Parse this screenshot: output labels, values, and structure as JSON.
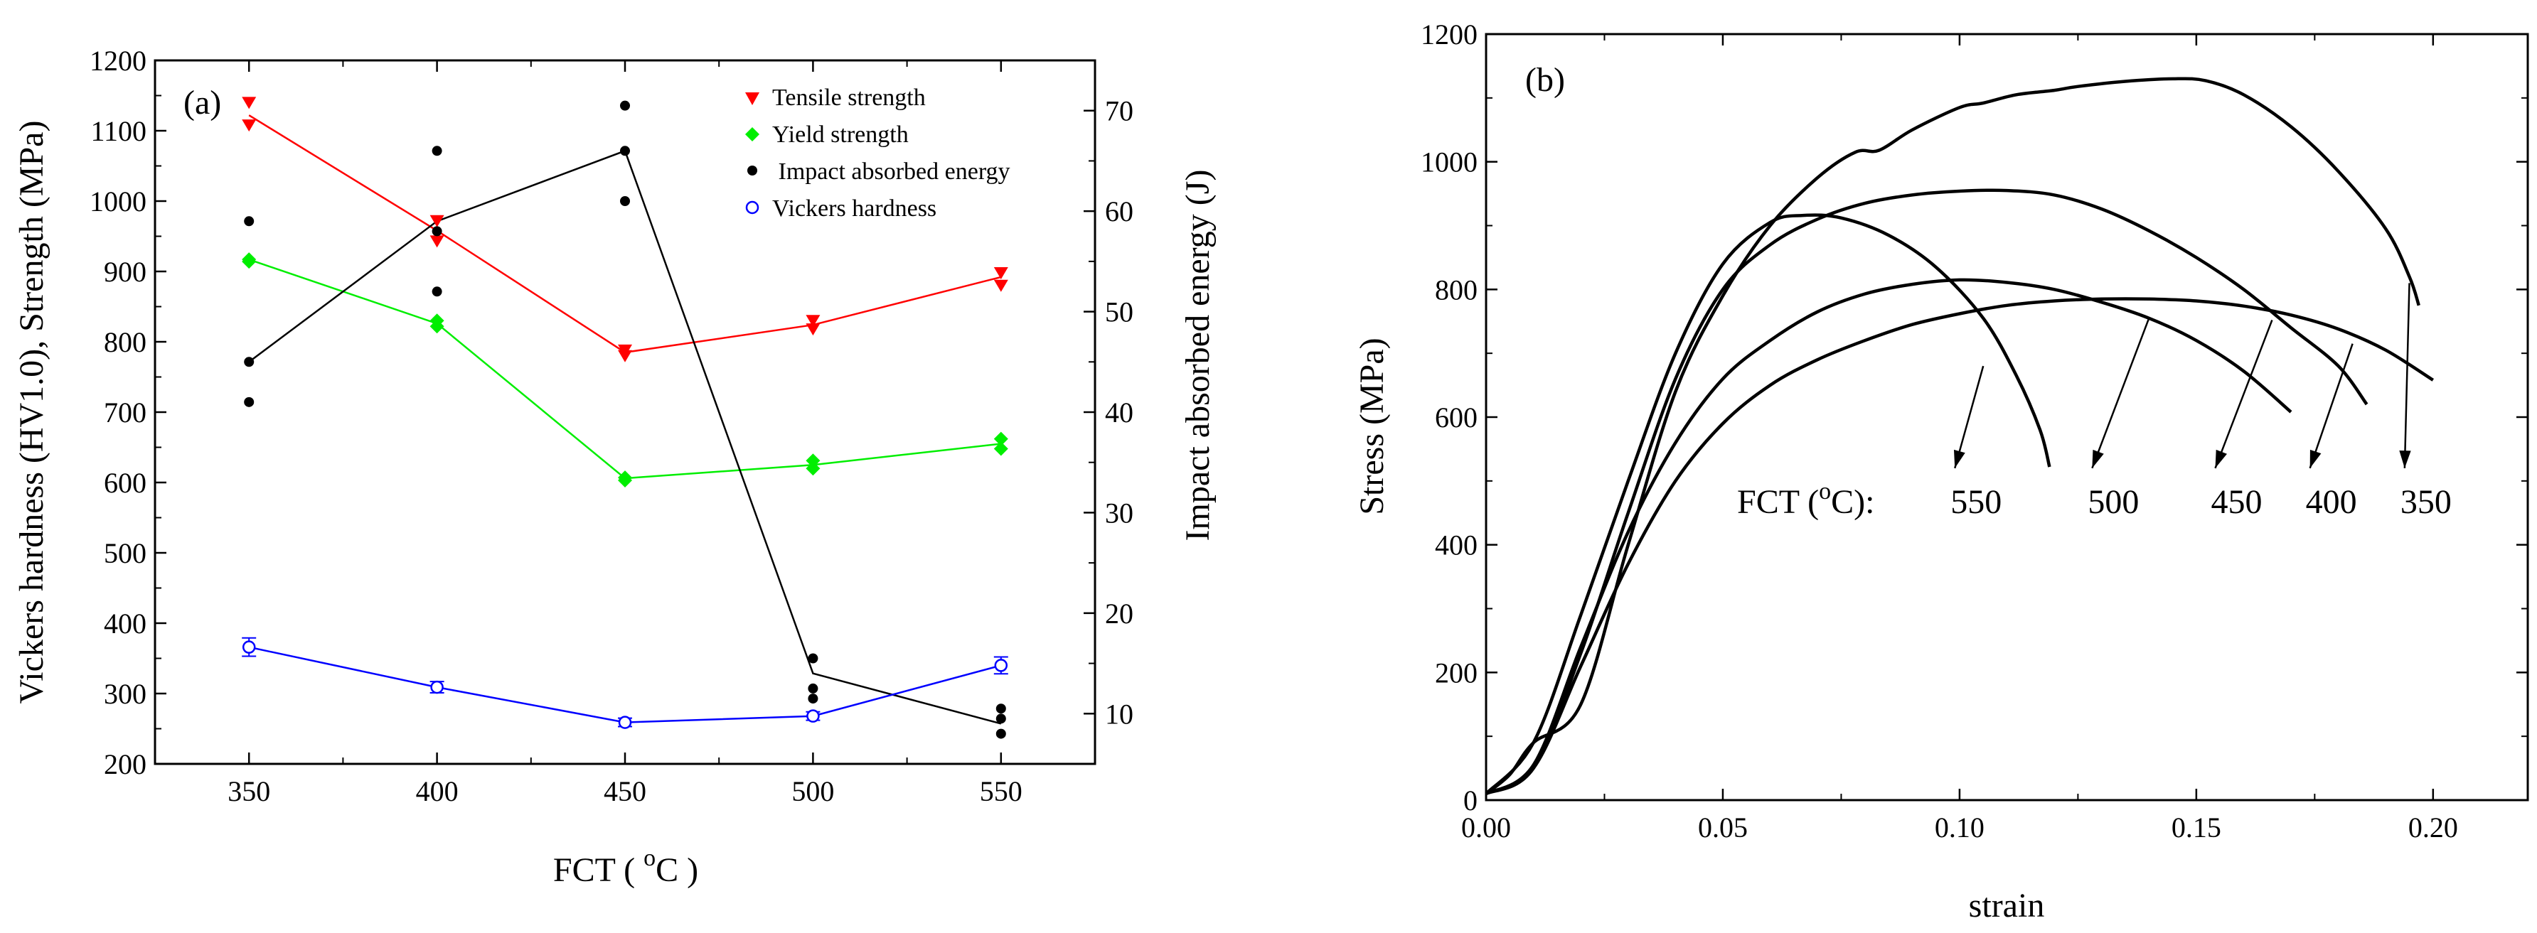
{
  "chart_data": [
    {
      "panel_label": "(a)",
      "type": "scatter",
      "xlabel_main": "FCT ( ",
      "xlabel_sup": "o",
      "xlabel_end": "C )",
      "ylabel_left": "Vickers hardness (HV1.0), Strength (MPa)",
      "ylabel_right": "Impact absorbed energy (J)",
      "xlim": [
        325,
        575
      ],
      "ylim_left": [
        200,
        1200
      ],
      "ylim_right": [
        5,
        75
      ],
      "xticks": [
        350,
        400,
        450,
        500,
        550
      ],
      "yticks_left": [
        200,
        300,
        400,
        500,
        600,
        700,
        800,
        900,
        1000,
        1100,
        1200
      ],
      "yticks_right": [
        10,
        20,
        30,
        40,
        50,
        60,
        70
      ],
      "colors": {
        "tensile": "#ff0000",
        "yield": "#00ee00",
        "impact": "#000000",
        "hardness": "#0000ff"
      },
      "series": [
        {
          "name": "Tensile strength",
          "axis": "left",
          "marker": "triangle-down",
          "points": [
            [
              350,
              1140
            ],
            [
              350,
              1108
            ],
            [
              400,
              972
            ],
            [
              400,
              943
            ],
            [
              450,
              788
            ],
            [
              450,
              780
            ],
            [
              500,
              830
            ],
            [
              500,
              818
            ],
            [
              550,
              898
            ],
            [
              550,
              880
            ]
          ],
          "mean_line": [
            [
              350,
              1122
            ],
            [
              400,
              958
            ],
            [
              450,
              785
            ],
            [
              500,
              824
            ],
            [
              550,
              892
            ]
          ]
        },
        {
          "name": "Yield strength",
          "axis": "left",
          "marker": "diamond",
          "points": [
            [
              350,
              917
            ],
            [
              350,
              914
            ],
            [
              400,
              830
            ],
            [
              400,
              822
            ],
            [
              450,
              607
            ],
            [
              450,
              603
            ],
            [
              500,
              631
            ],
            [
              500,
              620
            ],
            [
              550,
              662
            ],
            [
              550,
              648
            ]
          ],
          "mean_line": [
            [
              350,
              917
            ],
            [
              400,
              826
            ],
            [
              450,
              606
            ],
            [
              500,
              625
            ],
            [
              550,
              655
            ]
          ]
        },
        {
          "name": " Impact absorbed energy",
          "axis": "right",
          "marker": "dot",
          "points": [
            [
              350,
              59
            ],
            [
              350,
              45
            ],
            [
              350,
              41
            ],
            [
              400,
              66
            ],
            [
              400,
              58
            ],
            [
              400,
              52
            ],
            [
              450,
              70.5
            ],
            [
              450,
              66
            ],
            [
              450,
              61
            ],
            [
              500,
              15.5
            ],
            [
              500,
              12.5
            ],
            [
              500,
              11.5
            ],
            [
              550,
              10.5
            ],
            [
              550,
              9.5
            ],
            [
              550,
              8
            ]
          ],
          "mean_line": [
            [
              350,
              45
            ],
            [
              400,
              59
            ],
            [
              450,
              66
            ],
            [
              500,
              14
            ],
            [
              550,
              9
            ]
          ]
        },
        {
          "name": "Vickers hardness",
          "axis": "left",
          "marker": "open-circle",
          "points": [
            [
              350,
              366
            ],
            [
              400,
              309
            ],
            [
              450,
              259
            ],
            [
              500,
              268
            ],
            [
              550,
              340
            ]
          ],
          "errors": [
            13,
            8,
            6,
            6,
            12
          ],
          "mean_line": [
            [
              350,
              366
            ],
            [
              400,
              309
            ],
            [
              450,
              259
            ],
            [
              500,
              268
            ],
            [
              550,
              340
            ]
          ]
        }
      ]
    },
    {
      "panel_label": "(b)",
      "type": "line",
      "xlabel": "strain",
      "ylabel": "Stress (MPa)",
      "xlim": [
        0,
        0.22
      ],
      "ylim": [
        0,
        1200
      ],
      "xticks": [
        "0.00",
        "0.05",
        "0.10",
        "0.15",
        "0.20"
      ],
      "yticks": [
        0,
        200,
        400,
        600,
        800,
        1000,
        1200
      ],
      "annotation_prefix": "FCT (",
      "annotation_sup": "o",
      "annotation_suffix": "C):",
      "series": [
        {
          "name": "550",
          "points": [
            [
              0,
              10
            ],
            [
              0.01,
              90
            ],
            [
              0.02,
              290
            ],
            [
              0.03,
              500
            ],
            [
              0.04,
              700
            ],
            [
              0.05,
              840
            ],
            [
              0.06,
              905
            ],
            [
              0.067,
              916
            ],
            [
              0.075,
              912
            ],
            [
              0.085,
              885
            ],
            [
              0.095,
              835
            ],
            [
              0.105,
              755
            ],
            [
              0.112,
              665
            ],
            [
              0.117,
              580
            ],
            [
              0.119,
              522
            ]
          ]
        },
        {
          "name": "500",
          "points": [
            [
              0,
              10
            ],
            [
              0.01,
              55
            ],
            [
              0.02,
              240
            ],
            [
              0.03,
              420
            ],
            [
              0.04,
              560
            ],
            [
              0.05,
              660
            ],
            [
              0.06,
              720
            ],
            [
              0.07,
              765
            ],
            [
              0.08,
              793
            ],
            [
              0.09,
              808
            ],
            [
              0.1,
              815
            ],
            [
              0.11,
              811
            ],
            [
              0.12,
              800
            ],
            [
              0.13,
              780
            ],
            [
              0.14,
              755
            ],
            [
              0.15,
              720
            ],
            [
              0.16,
              672
            ],
            [
              0.17,
              608
            ]
          ]
        },
        {
          "name": "450",
          "points": [
            [
              0,
              10
            ],
            [
              0.01,
              50
            ],
            [
              0.02,
              230
            ],
            [
              0.03,
              450
            ],
            [
              0.04,
              660
            ],
            [
              0.05,
              800
            ],
            [
              0.06,
              870
            ],
            [
              0.07,
              910
            ],
            [
              0.08,
              935
            ],
            [
              0.09,
              948
            ],
            [
              0.1,
              954
            ],
            [
              0.11,
              955
            ],
            [
              0.12,
              948
            ],
            [
              0.13,
              926
            ],
            [
              0.14,
              892
            ],
            [
              0.15,
              850
            ],
            [
              0.16,
              800
            ],
            [
              0.17,
              740
            ],
            [
              0.18,
              680
            ],
            [
              0.186,
              620
            ]
          ]
        },
        {
          "name": "400",
          "points": [
            [
              0,
              10
            ],
            [
              0.01,
              50
            ],
            [
              0.02,
              210
            ],
            [
              0.03,
              370
            ],
            [
              0.04,
              500
            ],
            [
              0.05,
              590
            ],
            [
              0.06,
              650
            ],
            [
              0.07,
              690
            ],
            [
              0.08,
              720
            ],
            [
              0.09,
              745
            ],
            [
              0.1,
              762
            ],
            [
              0.11,
              775
            ],
            [
              0.12,
              782
            ],
            [
              0.13,
              785
            ],
            [
              0.14,
              785
            ],
            [
              0.15,
              782
            ],
            [
              0.16,
              774
            ],
            [
              0.17,
              760
            ],
            [
              0.18,
              738
            ],
            [
              0.19,
              705
            ],
            [
              0.2,
              658
            ]
          ]
        },
        {
          "name": "350",
          "points": [
            [
              0,
              10
            ],
            [
              0.005,
              40
            ],
            [
              0.01,
              90
            ],
            [
              0.02,
              150
            ],
            [
              0.03,
              400
            ],
            [
              0.04,
              640
            ],
            [
              0.05,
              790
            ],
            [
              0.06,
              900
            ],
            [
              0.07,
              975
            ],
            [
              0.078,
              1015
            ],
            [
              0.083,
              1018
            ],
            [
              0.09,
              1050
            ],
            [
              0.1,
              1085
            ],
            [
              0.105,
              1092
            ],
            [
              0.112,
              1105
            ],
            [
              0.12,
              1112
            ],
            [
              0.125,
              1118
            ],
            [
              0.135,
              1126
            ],
            [
              0.145,
              1130
            ],
            [
              0.152,
              1127
            ],
            [
              0.16,
              1105
            ],
            [
              0.17,
              1055
            ],
            [
              0.18,
              985
            ],
            [
              0.19,
              895
            ],
            [
              0.195,
              820
            ],
            [
              0.197,
              775
            ]
          ]
        }
      ],
      "arrows": [
        {
          "label": "550",
          "from": [
            0.105,
            680
          ],
          "to": [
            0.099,
            520
          ]
        },
        {
          "label": "500",
          "from": [
            0.14,
            755
          ],
          "to": [
            0.128,
            520
          ]
        },
        {
          "label": "450",
          "from": [
            0.166,
            752
          ],
          "to": [
            0.154,
            520
          ]
        },
        {
          "label": "400",
          "from": [
            0.183,
            715
          ],
          "to": [
            0.174,
            520
          ]
        },
        {
          "label": "350",
          "from": [
            0.195,
            810
          ],
          "to": [
            0.194,
            520
          ]
        }
      ]
    }
  ]
}
